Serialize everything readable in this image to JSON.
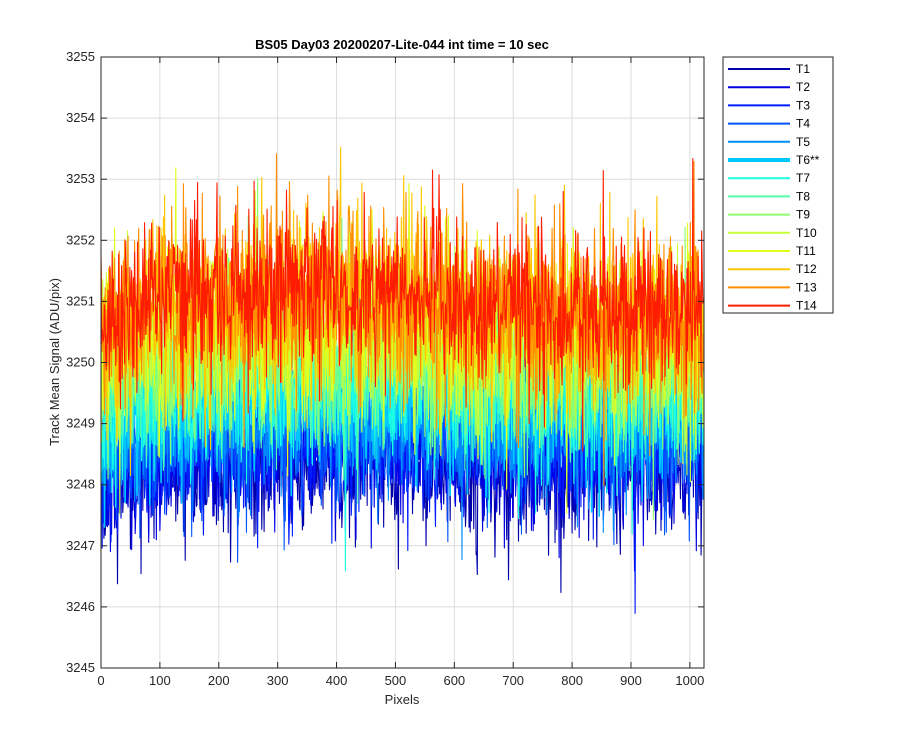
{
  "chart_data": {
    "type": "line",
    "title": "BS05 Day03 20200207-Lite-044 int time = 10 sec",
    "xlabel": "Pixels",
    "ylabel": "Track Mean Signal (ADU/pix)",
    "xlim": [
      0,
      1024
    ],
    "ylim": [
      3245,
      3255
    ],
    "xticks": [
      "0",
      "100",
      "200",
      "300",
      "400",
      "500",
      "600",
      "700",
      "800",
      "900",
      "1000"
    ],
    "yticks": [
      "3245",
      "3246",
      "3247",
      "3248",
      "3249",
      "3250",
      "3251",
      "3252",
      "3253",
      "3254",
      "3255"
    ],
    "grid": true,
    "legend_position": "outside-top-right",
    "n_points": 1024,
    "series": [
      {
        "name": "T1",
        "color": "#0000ab",
        "mean": 3248.1,
        "sd": 0.55,
        "trend": [
          -0.4,
          0.2,
          0.2
        ],
        "highlight": false
      },
      {
        "name": "T2",
        "color": "#0000e3",
        "mean": 3248.3,
        "sd": 0.55,
        "trend": [
          -0.4,
          0.2,
          0.2
        ],
        "highlight": false
      },
      {
        "name": "T3",
        "color": "#001cff",
        "mean": 3248.5,
        "sd": 0.55,
        "trend": [
          -0.35,
          0.2,
          0.15
        ],
        "highlight": false
      },
      {
        "name": "T4",
        "color": "#0055ff",
        "mean": 3248.7,
        "sd": 0.55,
        "trend": [
          -0.35,
          0.2,
          0.15
        ],
        "highlight": false
      },
      {
        "name": "T5",
        "color": "#008eff",
        "mean": 3248.9,
        "sd": 0.55,
        "trend": [
          -0.3,
          0.2,
          0.15
        ],
        "highlight": false
      },
      {
        "name": "T6**",
        "color": "#00c7ff",
        "mean": 3249.2,
        "sd": 0.55,
        "trend": [
          -0.3,
          0.2,
          0.15
        ],
        "highlight": true
      },
      {
        "name": "T7",
        "color": "#1cffe3",
        "mean": 3249.4,
        "sd": 0.6,
        "trend": [
          -0.3,
          0.2,
          0.1
        ],
        "highlight": false
      },
      {
        "name": "T8",
        "color": "#55ffaa",
        "mean": 3249.7,
        "sd": 0.6,
        "trend": [
          -0.3,
          0.2,
          0.1
        ],
        "highlight": false
      },
      {
        "name": "T9",
        "color": "#8eff71",
        "mean": 3249.9,
        "sd": 0.6,
        "trend": [
          -0.3,
          0.25,
          0.05
        ],
        "highlight": false
      },
      {
        "name": "T10",
        "color": "#c7ff38",
        "mean": 3250.2,
        "sd": 0.65,
        "trend": [
          -0.3,
          0.25,
          0.0
        ],
        "highlight": false
      },
      {
        "name": "T11",
        "color": "#e3ff1c",
        "mean": 3250.5,
        "sd": 0.65,
        "trend": [
          -0.3,
          0.3,
          0.0
        ],
        "highlight": false
      },
      {
        "name": "T12",
        "color": "#ffc700",
        "mean": 3250.7,
        "sd": 0.7,
        "trend": [
          -0.35,
          0.3,
          -0.05
        ],
        "highlight": false
      },
      {
        "name": "T13",
        "color": "#ff8e00",
        "mean": 3250.9,
        "sd": 0.7,
        "trend": [
          -0.35,
          0.3,
          -0.1
        ],
        "highlight": false
      },
      {
        "name": "T14",
        "color": "#ff1c00",
        "mean": 3251.0,
        "sd": 0.6,
        "trend": [
          -0.4,
          0.3,
          -0.2
        ],
        "highlight": false
      }
    ]
  }
}
